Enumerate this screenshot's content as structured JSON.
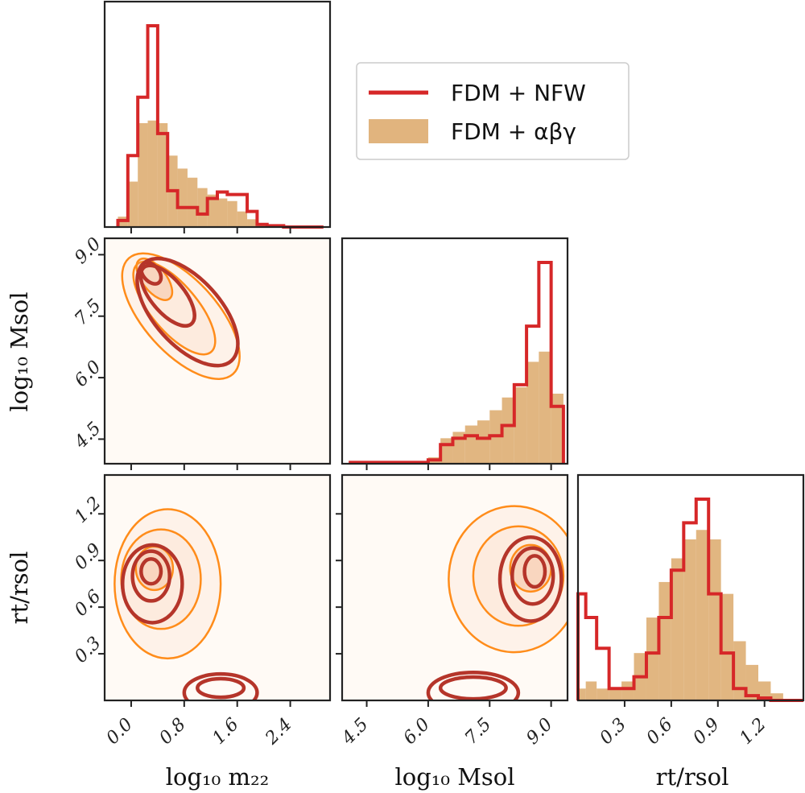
{
  "chart_data": {
    "type": "corner",
    "parameters": [
      "log10 m22",
      "log10 Msol",
      "rt/rsol"
    ],
    "legend": {
      "position": "top-right",
      "entries": [
        {
          "label": "FDM + NFW",
          "style": "step-line",
          "color": "#d62728"
        },
        {
          "label": "FDM + αβγ",
          "style": "filled",
          "color": "#d9a15e"
        }
      ]
    },
    "axes": {
      "m22": {
        "label": "log₁₀ m₂₂",
        "range": [
          -0.4,
          3.0
        ],
        "ticks": [
          "0.0",
          "0.8",
          "1.6",
          "2.4"
        ],
        "tick_values": [
          0.0,
          0.8,
          1.6,
          2.4
        ]
      },
      "Msol": {
        "label": "log₁₀ Msol",
        "range": [
          3.9,
          9.4
        ],
        "ticks": [
          "4.5",
          "6.0",
          "7.5",
          "9.0"
        ],
        "tick_values": [
          4.5,
          6.0,
          7.5,
          9.0
        ]
      },
      "rt": {
        "label": "rt/rsol",
        "range": [
          0.0,
          1.45
        ],
        "ticks": [
          "0.3",
          "0.6",
          "0.9",
          "1.2"
        ],
        "tick_values": [
          0.3,
          0.6,
          0.9,
          1.2
        ]
      }
    },
    "histograms": {
      "m22": {
        "bin_edges": [
          -0.2,
          -0.05,
          0.1,
          0.25,
          0.4,
          0.55,
          0.7,
          0.85,
          1.0,
          1.15,
          1.3,
          1.45,
          1.6,
          1.75,
          1.9,
          2.05,
          2.3,
          2.9
        ],
        "nfw": [
          0.05,
          0.55,
          1.0,
          1.55,
          0.72,
          0.28,
          0.15,
          0.15,
          0.1,
          0.22,
          0.27,
          0.25,
          0.25,
          0.12,
          0.02,
          0.01,
          0.0
        ],
        "abg": [
          0.08,
          0.35,
          0.8,
          0.82,
          0.8,
          0.55,
          0.45,
          0.38,
          0.3,
          0.25,
          0.22,
          0.2,
          0.12,
          0.06,
          0.02,
          0.01,
          0.0
        ]
      },
      "Msol": {
        "bin_edges": [
          4.1,
          4.4,
          4.8,
          5.2,
          5.6,
          6.0,
          6.3,
          6.6,
          6.9,
          7.2,
          7.5,
          7.8,
          8.1,
          8.4,
          8.7,
          9.0,
          9.3
        ],
        "nfw": [
          0.01,
          0.01,
          0.01,
          0.01,
          0.01,
          0.03,
          0.15,
          0.2,
          0.22,
          0.2,
          0.22,
          0.3,
          0.62,
          1.08,
          1.58,
          0.45
        ],
        "abg": [
          0.01,
          0.01,
          0.01,
          0.01,
          0.01,
          0.05,
          0.2,
          0.25,
          0.3,
          0.34,
          0.42,
          0.52,
          0.6,
          0.8,
          0.88,
          0.55
        ]
      },
      "rt": {
        "bin_edges": [
          0.0,
          0.05,
          0.12,
          0.2,
          0.28,
          0.36,
          0.44,
          0.52,
          0.6,
          0.68,
          0.76,
          0.84,
          0.92,
          1.0,
          1.08,
          1.16,
          1.24,
          1.32,
          1.45
        ],
        "nfw": [
          0.45,
          0.35,
          0.22,
          0.05,
          0.05,
          0.1,
          0.2,
          0.35,
          0.55,
          0.75,
          0.85,
          0.45,
          0.2,
          0.05,
          0.02,
          0.01,
          0.0,
          0.0
        ],
        "abg": [
          0.05,
          0.08,
          0.05,
          0.05,
          0.08,
          0.2,
          0.35,
          0.5,
          0.6,
          0.68,
          0.72,
          0.68,
          0.45,
          0.25,
          0.15,
          0.08,
          0.03,
          0.0
        ]
      }
    },
    "contours": {
      "Msol_vs_m22": {
        "nfw": [
          {
            "cx": 0.3,
            "cy": 8.55,
            "rx": 0.12,
            "ry": 0.3,
            "angle": -40
          },
          {
            "cx": 0.55,
            "cy": 8.0,
            "rx": 0.25,
            "ry": 0.9,
            "angle": -40
          },
          {
            "cx": 0.85,
            "cy": 7.6,
            "rx": 0.5,
            "ry": 1.6,
            "angle": -42
          }
        ],
        "abg": [
          {
            "cx": 0.35,
            "cy": 8.4,
            "rx": 0.18,
            "ry": 0.6,
            "angle": -38
          },
          {
            "cx": 0.65,
            "cy": 7.7,
            "rx": 0.35,
            "ry": 1.4,
            "angle": -40
          },
          {
            "cx": 0.75,
            "cy": 7.5,
            "rx": 0.55,
            "ry": 1.9,
            "angle": -42
          }
        ]
      },
      "rt_vs_m22": {
        "nfw": [
          {
            "cx": 0.3,
            "cy": 0.83,
            "rx": 0.15,
            "ry": 0.08,
            "angle": 0
          },
          {
            "cx": 0.3,
            "cy": 0.8,
            "rx": 0.28,
            "ry": 0.16,
            "angle": 0
          },
          {
            "cx": 0.32,
            "cy": 0.75,
            "rx": 0.45,
            "ry": 0.25,
            "angle": 0
          },
          {
            "cx": 1.35,
            "cy": 0.08,
            "rx": 0.35,
            "ry": 0.06,
            "angle": 0
          },
          {
            "cx": 1.35,
            "cy": 0.05,
            "rx": 0.55,
            "ry": 0.12,
            "angle": 0
          }
        ],
        "abg": [
          {
            "cx": 0.35,
            "cy": 0.85,
            "rx": 0.28,
            "ry": 0.14,
            "angle": 0
          },
          {
            "cx": 0.45,
            "cy": 0.78,
            "rx": 0.6,
            "ry": 0.32,
            "angle": 0
          },
          {
            "cx": 0.55,
            "cy": 0.75,
            "rx": 0.8,
            "ry": 0.48,
            "angle": 0
          }
        ]
      },
      "rt_vs_Msol": {
        "nfw": [
          {
            "cx": 8.6,
            "cy": 0.83,
            "rx": 0.25,
            "ry": 0.1,
            "angle": 0
          },
          {
            "cx": 8.55,
            "cy": 0.8,
            "rx": 0.5,
            "ry": 0.18,
            "angle": 0
          },
          {
            "cx": 8.5,
            "cy": 0.78,
            "rx": 0.75,
            "ry": 0.27,
            "angle": 0
          },
          {
            "cx": 7.1,
            "cy": 0.08,
            "rx": 0.8,
            "ry": 0.07,
            "angle": 0
          },
          {
            "cx": 7.1,
            "cy": 0.05,
            "rx": 1.1,
            "ry": 0.13,
            "angle": 0
          }
        ],
        "abg": [
          {
            "cx": 8.5,
            "cy": 0.85,
            "rx": 0.5,
            "ry": 0.15,
            "angle": 0
          },
          {
            "cx": 8.2,
            "cy": 0.8,
            "rx": 1.1,
            "ry": 0.32,
            "angle": 0
          },
          {
            "cx": 8.1,
            "cy": 0.78,
            "rx": 1.6,
            "ry": 0.47,
            "angle": 0
          }
        ]
      }
    }
  }
}
